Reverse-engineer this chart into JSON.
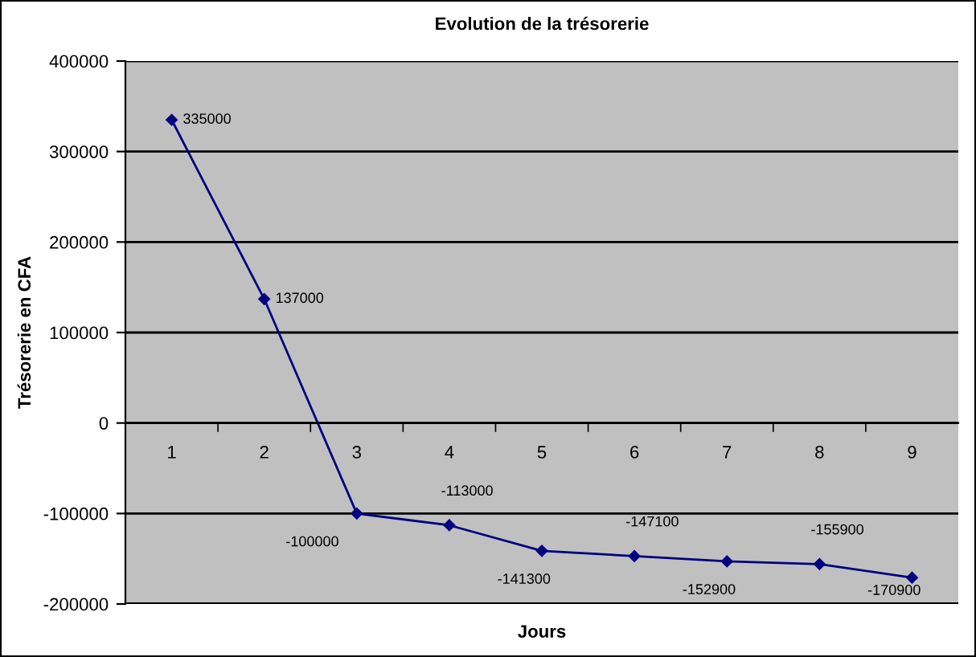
{
  "chart_data": {
    "type": "line",
    "title": "Evolution de la trésorerie",
    "xlabel": "Jours",
    "ylabel": "Trésorerie en CFA",
    "categories": [
      "1",
      "2",
      "3",
      "4",
      "5",
      "6",
      "7",
      "8",
      "9"
    ],
    "series": [
      {
        "color": "#000080",
        "values": [
          335000,
          137000,
          -100000,
          -113000,
          -141300,
          -147100,
          -152900,
          -155900,
          -170900
        ]
      }
    ],
    "ylim": [
      -200000,
      400000
    ],
    "yticks": [
      -200000,
      -100000,
      0,
      100000,
      200000,
      300000,
      400000
    ],
    "grid": "y",
    "marker": "diamond",
    "data_labels": true
  }
}
